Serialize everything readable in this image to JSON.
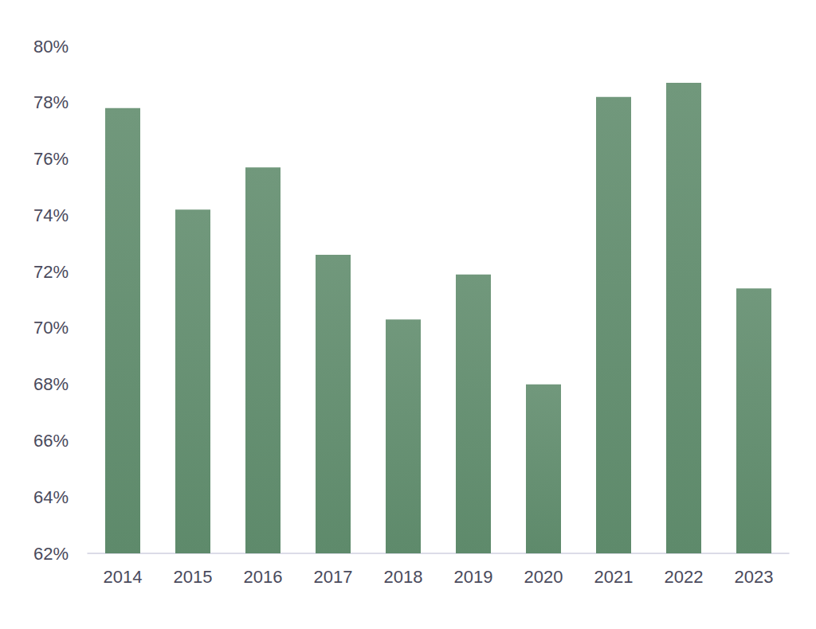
{
  "chart_data": {
    "type": "bar",
    "categories": [
      "2014",
      "2015",
      "2016",
      "2017",
      "2018",
      "2019",
      "2020",
      "2021",
      "2022",
      "2023"
    ],
    "values": [
      77.8,
      74.2,
      75.7,
      72.6,
      70.3,
      71.9,
      68.0,
      78.2,
      78.7,
      71.4
    ],
    "color": "#5e8a6b",
    "ylim": [
      62,
      80
    ],
    "yticks": [
      {
        "value": 62,
        "label": "62%"
      },
      {
        "value": 64,
        "label": "64%"
      },
      {
        "value": 66,
        "label": "66%"
      },
      {
        "value": 68,
        "label": "68%"
      },
      {
        "value": 70,
        "label": "70%"
      },
      {
        "value": 72,
        "label": "72%"
      },
      {
        "value": 74,
        "label": "74%"
      },
      {
        "value": 76,
        "label": "76%"
      },
      {
        "value": 78,
        "label": "78%"
      },
      {
        "value": 80,
        "label": "80%"
      }
    ],
    "grid": false
  }
}
